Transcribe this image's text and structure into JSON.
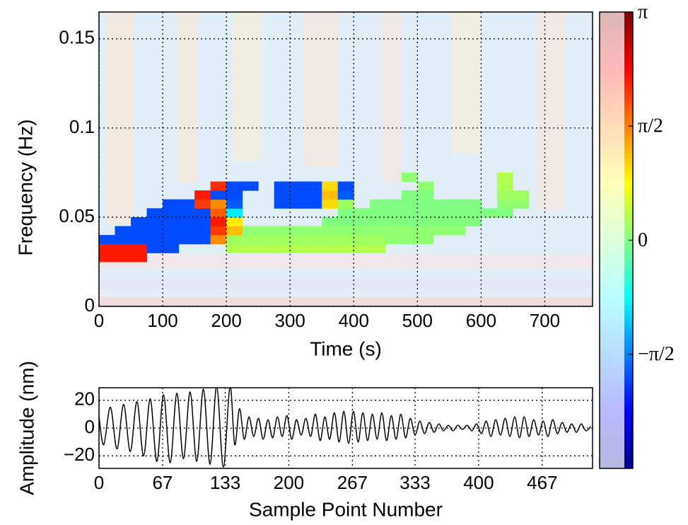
{
  "chart_data": [
    {
      "type": "heatmap",
      "ylabel": "Frequency (Hz)",
      "xlabel": "Time (s)",
      "xlim": [
        0,
        775
      ],
      "ylim": [
        0,
        0.165
      ],
      "xticks": [
        0,
        100,
        200,
        300,
        400,
        500,
        600,
        700
      ],
      "yticks": [
        0,
        0.05,
        0.1,
        0.15
      ],
      "grid": true,
      "x_edges": [
        0,
        25,
        50,
        75,
        100,
        125,
        150,
        175,
        200,
        225,
        250,
        275,
        300,
        325,
        350,
        375,
        400,
        425,
        450,
        475,
        500,
        525,
        550,
        575,
        600,
        625,
        650,
        675,
        700,
        725,
        750,
        775
      ],
      "y_edges": [
        0.025,
        0.03,
        0.035,
        0.04,
        0.045,
        0.05,
        0.055,
        0.06,
        0.065,
        0.07,
        0.075
      ],
      "values": [
        [
          2.2,
          2.2,
          2.2,
          null,
          null,
          null,
          null,
          null,
          null,
          null,
          null,
          null,
          null,
          null,
          null,
          null,
          null,
          null,
          null,
          null,
          null,
          null,
          null,
          null,
          null,
          null,
          null,
          null,
          null,
          null,
          null
        ],
        [
          2.2,
          2.2,
          2.2,
          -1.9,
          -1.9,
          null,
          null,
          null,
          0.3,
          0.3,
          0.3,
          0.3,
          0.3,
          0.3,
          0.3,
          0.3,
          0.3,
          0.3,
          null,
          null,
          null,
          null,
          null,
          null,
          null,
          null,
          null,
          null,
          null,
          null,
          null
        ],
        [
          -1.9,
          -1.9,
          -1.9,
          -1.9,
          -1.9,
          -1.9,
          -1.9,
          1.5,
          0.2,
          0.2,
          0.2,
          0.2,
          0.2,
          0.2,
          0.2,
          0.2,
          0.2,
          0.2,
          0.1,
          0.1,
          0.1,
          null,
          null,
          null,
          null,
          null,
          null,
          null,
          null,
          null,
          null
        ],
        [
          null,
          -1.9,
          -1.9,
          -1.9,
          -1.9,
          -1.9,
          -1.9,
          2.0,
          1.2,
          0.1,
          0.1,
          0.1,
          0.1,
          0.1,
          0.1,
          0.1,
          0.1,
          0.1,
          0.1,
          0.1,
          0.1,
          0.1,
          0.1,
          null,
          null,
          null,
          null,
          null,
          null,
          null,
          null
        ],
        [
          null,
          null,
          -1.9,
          -1.9,
          -1.9,
          -1.9,
          -1.9,
          2.2,
          0.9,
          null,
          null,
          null,
          null,
          null,
          0.0,
          0.0,
          0.0,
          0.0,
          0.0,
          0.0,
          0.0,
          0.0,
          0.0,
          0.0,
          null,
          null,
          null,
          null,
          null,
          null,
          null
        ],
        [
          null,
          null,
          null,
          -1.9,
          -1.9,
          -1.9,
          -1.9,
          1.8,
          -0.9,
          null,
          null,
          null,
          null,
          null,
          null,
          0.0,
          0.0,
          0.0,
          0.0,
          0.0,
          0.0,
          0.0,
          0.0,
          0.0,
          0.0,
          0.0,
          null,
          null,
          null,
          null,
          null
        ],
        [
          null,
          null,
          null,
          null,
          -1.9,
          -1.9,
          2.0,
          1.5,
          -1.8,
          null,
          null,
          -1.9,
          -1.9,
          -1.9,
          1.0,
          0.2,
          null,
          0.0,
          0.0,
          0.0,
          0.0,
          0.0,
          0.0,
          0.0,
          null,
          0.1,
          0.1,
          null,
          null,
          null,
          null
        ],
        [
          null,
          null,
          null,
          null,
          null,
          null,
          2.2,
          -1.9,
          -1.9,
          null,
          null,
          -1.9,
          -1.9,
          -1.9,
          1.2,
          -1.8,
          null,
          null,
          null,
          0.0,
          0.0,
          null,
          null,
          null,
          null,
          0.2,
          0.2,
          null,
          null,
          null,
          null
        ],
        [
          null,
          null,
          null,
          null,
          null,
          null,
          null,
          2.1,
          -1.9,
          -1.9,
          null,
          -1.9,
          -1.9,
          -1.9,
          1.0,
          -1.9,
          null,
          null,
          null,
          null,
          0.1,
          null,
          null,
          null,
          null,
          0.3,
          null,
          null,
          null,
          null,
          null
        ],
        [
          null,
          null,
          null,
          null,
          null,
          null,
          null,
          null,
          null,
          null,
          null,
          null,
          null,
          null,
          null,
          null,
          null,
          null,
          null,
          0.1,
          null,
          null,
          null,
          null,
          null,
          0.3,
          null,
          null,
          null,
          null,
          null
        ]
      ],
      "clim": [
        -3.1416,
        3.1416
      ],
      "cticks": [
        {
          "value": 3.1416,
          "label": "π"
        },
        {
          "value": 1.5708,
          "label": "π/2"
        },
        0,
        {
          "value": -1.5708,
          "label": "−π/2"
        }
      ],
      "colormap": [
        "#00008f",
        "#0000ff",
        "#0080ff",
        "#00ffff",
        "#80ff80",
        "#ffff00",
        "#ff8000",
        "#ff0000",
        "#800000"
      ]
    },
    {
      "type": "line",
      "ylabel": "Amplitude (nm)",
      "xlabel": "Sample Point Number",
      "xlim": [
        0,
        520
      ],
      "ylim": [
        -29,
        29
      ],
      "xticks": [
        0,
        67,
        133,
        200,
        267,
        333,
        400,
        467
      ],
      "yticks": [
        {
          "value": -20,
          "label": "−20"
        },
        0,
        20
      ],
      "grid": true,
      "series": [
        {
          "color": "#000000",
          "x": [
            0,
            5,
            12,
            19,
            26,
            33,
            40,
            47,
            54,
            61,
            68,
            75,
            82,
            89,
            96,
            103,
            110,
            117,
            124,
            131,
            138,
            143,
            148,
            153,
            158,
            163,
            168,
            173,
            178,
            183,
            188,
            193,
            198,
            203,
            208,
            213,
            218,
            223,
            228,
            233,
            238,
            243,
            248,
            253,
            258,
            263,
            268,
            273,
            278,
            283,
            288,
            293,
            298,
            303,
            308,
            313,
            318,
            323,
            328,
            333,
            338,
            343,
            348,
            353,
            358,
            363,
            368,
            373,
            378,
            383,
            388,
            393,
            398,
            403,
            408,
            413,
            418,
            423,
            428,
            433,
            438,
            443,
            448,
            453,
            458,
            463,
            468,
            473,
            478,
            483,
            488,
            493,
            498,
            503,
            508,
            513,
            518
          ],
          "values": [
            8,
            -12,
            15,
            -15,
            17,
            -17,
            19,
            -20,
            21,
            -24,
            24,
            -25,
            25,
            -22,
            26,
            -24,
            28,
            -26,
            30,
            -28,
            30,
            -12,
            14,
            -8,
            8,
            -6,
            7,
            -8,
            6,
            -7,
            8,
            -6,
            9,
            -8,
            6,
            -5,
            7,
            -6,
            10,
            -9,
            8,
            -8,
            11,
            -10,
            12,
            -11,
            12,
            -10,
            11,
            -9,
            10,
            -8,
            11,
            -9,
            9,
            -8,
            10,
            -7,
            7,
            -5,
            5,
            -4,
            4,
            -3,
            3,
            -2,
            2,
            -2,
            2,
            -1,
            2,
            -2,
            3,
            -4,
            5,
            -6,
            6,
            -5,
            7,
            -6,
            8,
            -7,
            8,
            -6,
            6,
            -5,
            5,
            -6,
            6,
            -4,
            4,
            -3,
            3,
            -3,
            3,
            -2,
            1
          ]
        }
      ]
    }
  ]
}
